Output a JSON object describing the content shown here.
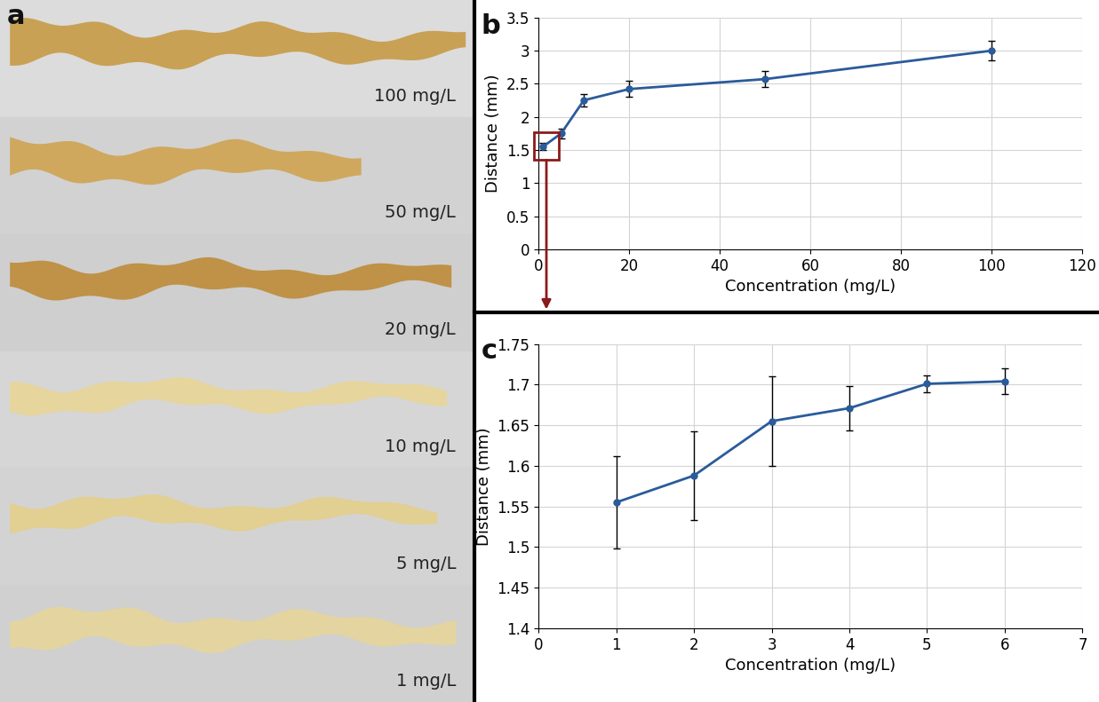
{
  "photo_panel": {
    "label": "a",
    "strips": [
      "100 mg/L",
      "50 mg/L",
      "20 mg/L",
      "10 mg/L",
      "5 mg/L",
      "1 mg/L"
    ]
  },
  "chart_data": [
    {
      "type": "line",
      "title": "b",
      "x": [
        1,
        5,
        10,
        20,
        50,
        100
      ],
      "values": [
        1.55,
        1.75,
        2.25,
        2.42,
        2.57,
        3.0
      ],
      "errors": [
        0.05,
        0.07,
        0.1,
        0.12,
        0.12,
        0.15
      ],
      "color": "#2a5b9b",
      "marker": "o",
      "line_style": "solid",
      "xlabel": "Concentration (mg/L)",
      "ylabel": "Distance (mm)",
      "xlim": [
        0,
        120
      ],
      "xticks": [
        0,
        20,
        40,
        60,
        80,
        100,
        120
      ],
      "ylim": [
        0,
        3.5
      ],
      "yticks": [
        0,
        0.5,
        1,
        1.5,
        2,
        2.5,
        3,
        3.5
      ],
      "grid": true
    },
    {
      "type": "line",
      "title": "c",
      "x": [
        1,
        2,
        3,
        4,
        5,
        6
      ],
      "values": [
        1.555,
        1.588,
        1.655,
        1.671,
        1.701,
        1.704
      ],
      "errors": [
        0.057,
        0.055,
        0.055,
        0.027,
        0.01,
        0.016
      ],
      "color": "#2a5b9b",
      "marker": "o",
      "line_style": "solid",
      "xlabel": "Concentration (mg/L)",
      "ylabel": "Distance (mm)",
      "xlim": [
        0,
        7
      ],
      "xticks": [
        0,
        1,
        2,
        3,
        4,
        5,
        6,
        7
      ],
      "ylim": [
        1.4,
        1.75
      ],
      "yticks": [
        1.4,
        1.45,
        1.5,
        1.55,
        1.6,
        1.65,
        1.7,
        1.75
      ],
      "grid": true
    }
  ]
}
